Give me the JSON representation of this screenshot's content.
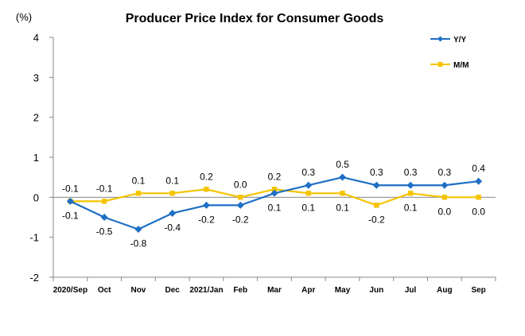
{
  "chart_data": {
    "type": "line",
    "title": "Producer Price Index for Consumer Goods",
    "unit_label": "(%)",
    "categories": [
      "2020/Sep",
      "Oct",
      "Nov",
      "Dec",
      "2021/Jan",
      "Feb",
      "Mar",
      "Apr",
      "May",
      "Jun",
      "Jul",
      "Aug",
      "Sep"
    ],
    "series": [
      {
        "name": "Y/Y",
        "color": "#1F6FC5",
        "marker": "diamond",
        "values": [
          -0.1,
          -0.5,
          -0.8,
          -0.4,
          -0.2,
          -0.2,
          0.1,
          0.3,
          0.5,
          0.3,
          0.3,
          0.3,
          0.4
        ],
        "labels": [
          "-0.1",
          "-0.5",
          "-0.8",
          "-0.4",
          "-0.2",
          "-0.2",
          "0.1",
          "0.3",
          "0.5",
          "0.3",
          "0.3",
          "0.3",
          "0.4"
        ]
      },
      {
        "name": "M/M",
        "color": "#F5C400",
        "marker": "square",
        "values": [
          -0.1,
          -0.1,
          0.1,
          0.1,
          0.2,
          0.0,
          0.2,
          0.1,
          0.1,
          -0.2,
          0.1,
          0.0,
          0.0
        ],
        "labels": [
          "-0.1",
          "-0.1",
          "0.1",
          "0.1",
          "0.2",
          "0.0",
          "0.2",
          "0.1",
          "0.1",
          "-0.2",
          "0.1",
          "0.0",
          "0.0"
        ]
      }
    ],
    "ylim": [
      -2,
      4
    ],
    "yticks": [
      -2,
      -1,
      0,
      1,
      2,
      3,
      4
    ],
    "xlabel": "",
    "ylabel": "",
    "grid": false,
    "legend_position": "top-right"
  }
}
